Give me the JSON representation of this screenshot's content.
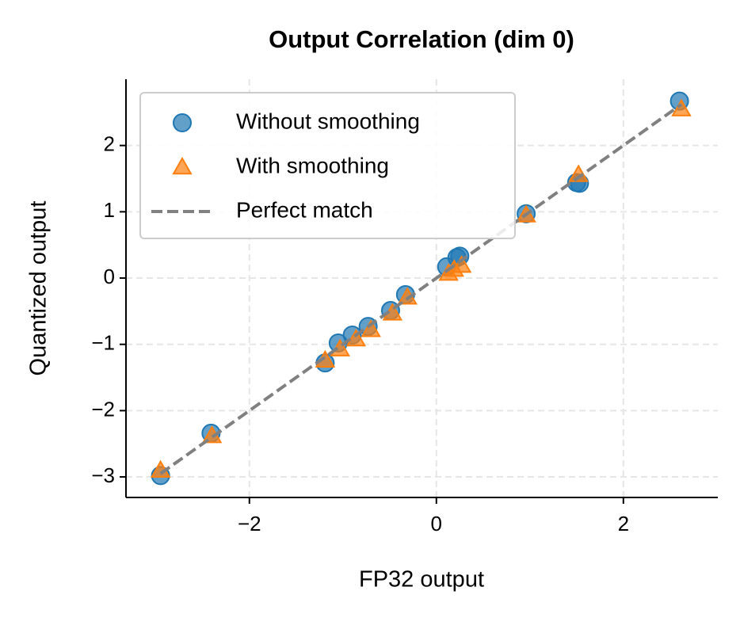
{
  "chart_data": {
    "type": "scatter",
    "title": "Output Correlation (dim 0)",
    "x_label": "FP32 output",
    "y_label": "Quantized output",
    "xlim": [
      -3.32,
      3.01
    ],
    "ylim": [
      -3.31,
      3.0
    ],
    "xticks": [
      {
        "value": -2,
        "label": "−2"
      },
      0,
      2
    ],
    "yticks": [
      {
        "value": -3,
        "label": "−3"
      },
      {
        "value": -2,
        "label": "−2"
      },
      {
        "value": -1,
        "label": "−1"
      },
      0,
      1,
      2
    ],
    "grid": true,
    "legend": "upper left",
    "series": [
      {
        "name": "Without smoothing",
        "color": "#1f77b4",
        "marker": "circle",
        "x": [
          -2.95,
          -2.41,
          -1.19,
          -1.05,
          -0.9,
          -0.73,
          -0.49,
          -0.33,
          0.11,
          0.22,
          0.25,
          0.96,
          1.5,
          1.53,
          2.6
        ],
        "values": [
          -2.98,
          -2.34,
          -1.28,
          -0.98,
          -0.86,
          -0.73,
          -0.49,
          -0.25,
          0.17,
          0.31,
          0.33,
          0.97,
          1.44,
          1.43,
          2.67
        ]
      },
      {
        "name": "With smoothing",
        "color": "#ff7f0e",
        "marker": "triangle",
        "x": [
          -2.95,
          -2.4,
          -1.19,
          -1.03,
          -0.86,
          -0.7,
          -0.47,
          -0.31,
          0.13,
          0.27,
          0.19,
          0.96,
          1.52,
          2.62
        ],
        "values": [
          -2.9,
          -2.38,
          -1.24,
          -1.07,
          -0.92,
          -0.78,
          -0.53,
          -0.29,
          0.07,
          0.19,
          0.13,
          0.95,
          1.56,
          2.55
        ]
      }
    ],
    "reference_line": {
      "name": "Perfect match",
      "color": "#808080",
      "x": [
        -2.95,
        2.62
      ],
      "values": [
        -2.95,
        2.62
      ]
    }
  }
}
